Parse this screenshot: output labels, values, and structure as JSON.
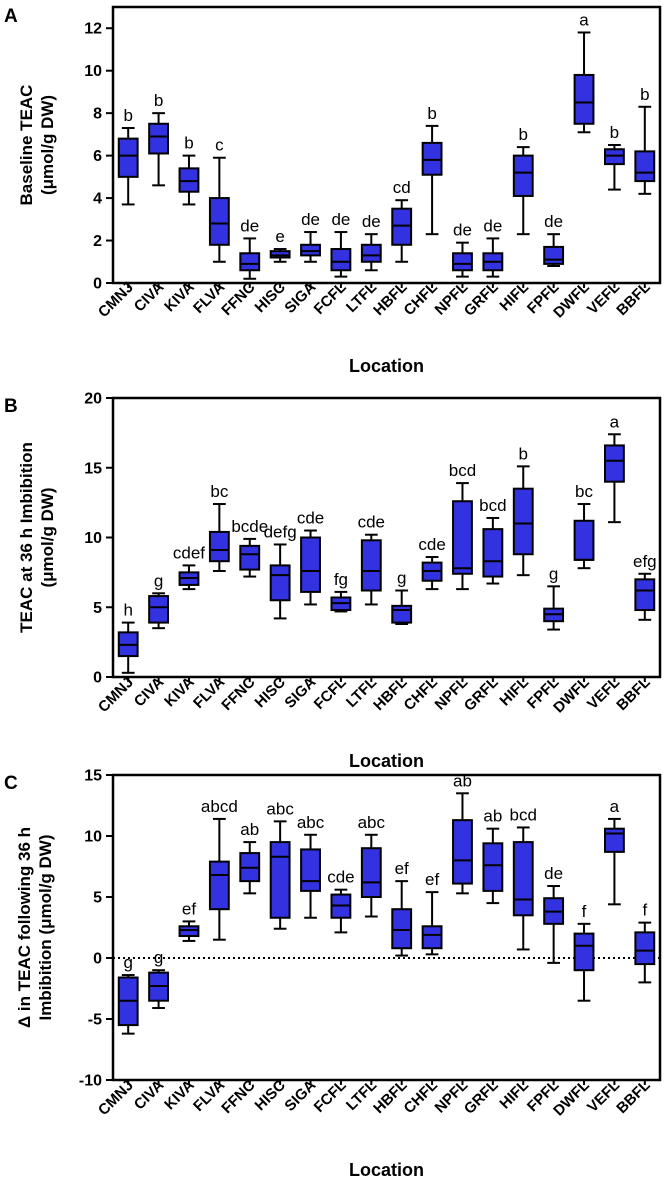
{
  "chart_data": [
    {
      "type": "box",
      "panel": "A",
      "title": "",
      "xlabel": "Location",
      "ylabel": [
        "Baseline TEAC",
        "(μmol/g DW)"
      ],
      "ylim": [
        0,
        13
      ],
      "yticks": [
        0,
        2,
        4,
        6,
        8,
        10,
        12
      ],
      "categories": [
        "CMNJ",
        "CIVA",
        "KIVA",
        "FLVA",
        "FFNC",
        "HISC",
        "SIGA",
        "FCFL",
        "LTFL",
        "HBFL",
        "CHFL",
        "NPFL",
        "GRFL",
        "HIFL",
        "FPFL",
        "DWFL",
        "VEFL",
        "BBFL"
      ],
      "boxes": [
        {
          "min": 3.7,
          "q1": 5.0,
          "median": 6.0,
          "q3": 6.8,
          "max": 7.3
        },
        {
          "min": 4.6,
          "q1": 6.1,
          "median": 6.9,
          "q3": 7.5,
          "max": 8.0
        },
        {
          "min": 3.7,
          "q1": 4.3,
          "median": 4.8,
          "q3": 5.4,
          "max": 6.0
        },
        {
          "min": 1.0,
          "q1": 1.8,
          "median": 2.8,
          "q3": 4.0,
          "max": 5.9
        },
        {
          "min": 0.2,
          "q1": 0.6,
          "median": 0.9,
          "q3": 1.4,
          "max": 2.1
        },
        {
          "min": 1.0,
          "q1": 1.2,
          "median": 1.3,
          "q3": 1.5,
          "max": 1.6
        },
        {
          "min": 1.0,
          "q1": 1.3,
          "median": 1.5,
          "q3": 1.8,
          "max": 2.4
        },
        {
          "min": 0.3,
          "q1": 0.6,
          "median": 1.0,
          "q3": 1.6,
          "max": 2.4
        },
        {
          "min": 0.6,
          "q1": 1.0,
          "median": 1.3,
          "q3": 1.8,
          "max": 2.3
        },
        {
          "min": 1.0,
          "q1": 1.8,
          "median": 2.7,
          "q3": 3.5,
          "max": 3.9
        },
        {
          "min": 2.3,
          "q1": 5.1,
          "median": 5.8,
          "q3": 6.6,
          "max": 7.4
        },
        {
          "min": 0.3,
          "q1": 0.6,
          "median": 0.9,
          "q3": 1.4,
          "max": 1.9
        },
        {
          "min": 0.3,
          "q1": 0.6,
          "median": 1.0,
          "q3": 1.4,
          "max": 2.1
        },
        {
          "min": 2.3,
          "q1": 4.1,
          "median": 5.2,
          "q3": 6.0,
          "max": 6.4
        },
        {
          "min": 0.8,
          "q1": 0.9,
          "median": 1.1,
          "q3": 1.7,
          "max": 2.3
        },
        {
          "min": 7.1,
          "q1": 7.5,
          "median": 8.5,
          "q3": 9.8,
          "max": 11.8
        },
        {
          "min": 4.4,
          "q1": 5.6,
          "median": 6.0,
          "q3": 6.3,
          "max": 6.5
        },
        {
          "min": 4.2,
          "q1": 4.8,
          "median": 5.2,
          "q3": 6.2,
          "max": 8.3
        }
      ],
      "annotations": [
        "b",
        "b",
        "b",
        "c",
        "de",
        "e",
        "de",
        "de",
        "de",
        "cd",
        "b",
        "de",
        "de",
        "b",
        "de",
        "a",
        "b",
        "b"
      ]
    },
    {
      "type": "box",
      "panel": "B",
      "title": "",
      "xlabel": "Location",
      "ylabel": [
        "TEAC at 36 h Imbibition",
        "(μmol/g DW)"
      ],
      "ylim": [
        0,
        20
      ],
      "yticks": [
        0,
        5,
        10,
        15,
        20
      ],
      "categories": [
        "CMNJ",
        "CIVA",
        "KIVA",
        "FLVA",
        "FFNC",
        "HISC",
        "SIGA",
        "FCFL",
        "LTFL",
        "HBFL",
        "CHFL",
        "NPFL",
        "GRFL",
        "HIFL",
        "FPFL",
        "DWFL",
        "VEFL",
        "BBFL"
      ],
      "boxes": [
        {
          "min": 0.3,
          "q1": 1.5,
          "median": 2.3,
          "q3": 3.2,
          "max": 3.9
        },
        {
          "min": 3.5,
          "q1": 3.9,
          "median": 5.0,
          "q3": 5.8,
          "max": 6.0
        },
        {
          "min": 6.3,
          "q1": 6.6,
          "median": 7.1,
          "q3": 7.5,
          "max": 8.0
        },
        {
          "min": 7.6,
          "q1": 8.3,
          "median": 9.1,
          "q3": 10.4,
          "max": 12.4
        },
        {
          "min": 7.2,
          "q1": 7.7,
          "median": 8.8,
          "q3": 9.4,
          "max": 9.9
        },
        {
          "min": 4.2,
          "q1": 5.5,
          "median": 7.3,
          "q3": 8.0,
          "max": 9.5
        },
        {
          "min": 5.2,
          "q1": 6.1,
          "median": 7.6,
          "q3": 10.0,
          "max": 10.5
        },
        {
          "min": 4.7,
          "q1": 4.8,
          "median": 5.3,
          "q3": 5.7,
          "max": 6.1
        },
        {
          "min": 5.2,
          "q1": 6.2,
          "median": 7.6,
          "q3": 9.8,
          "max": 10.2
        },
        {
          "min": 3.8,
          "q1": 3.9,
          "median": 4.8,
          "q3": 5.1,
          "max": 6.2
        },
        {
          "min": 6.3,
          "q1": 6.9,
          "median": 7.6,
          "q3": 8.2,
          "max": 8.6
        },
        {
          "min": 6.3,
          "q1": 7.4,
          "median": 7.8,
          "q3": 12.6,
          "max": 13.9
        },
        {
          "min": 6.7,
          "q1": 7.2,
          "median": 8.3,
          "q3": 10.6,
          "max": 11.4
        },
        {
          "min": 7.3,
          "q1": 8.8,
          "median": 11.0,
          "q3": 13.5,
          "max": 15.1
        },
        {
          "min": 3.4,
          "q1": 4.0,
          "median": 4.5,
          "q3": 4.9,
          "max": 6.5
        },
        {
          "min": 7.8,
          "q1": 8.4,
          "median": 8.4,
          "q3": 11.2,
          "max": 12.4
        },
        {
          "min": 11.1,
          "q1": 14.0,
          "median": 15.5,
          "q3": 16.6,
          "max": 17.4
        },
        {
          "min": 4.1,
          "q1": 4.8,
          "median": 6.2,
          "q3": 7.0,
          "max": 7.4
        }
      ],
      "annotations": [
        "h",
        "g",
        "cdef",
        "bc",
        "bcde",
        "defg",
        "cde",
        "fg",
        "cde",
        "g",
        "cde",
        "bcd",
        "bcd",
        "b",
        "g",
        "bc",
        "a",
        "efg"
      ]
    },
    {
      "type": "box",
      "panel": "C",
      "title": "",
      "xlabel": "Location",
      "ylabel": [
        "Δ in TEAC following 36 h",
        "Imbibition (μmol/g DW)"
      ],
      "ylim": [
        -10,
        15
      ],
      "yticks": [
        -10,
        -5,
        0,
        5,
        10,
        15
      ],
      "reference_line": 0,
      "categories": [
        "CMNJ",
        "CIVA",
        "KIVA",
        "FLVA",
        "FFNC",
        "HISC",
        "SIGA",
        "FCFL",
        "LTFL",
        "HBFL",
        "CHFL",
        "NPFL",
        "GRFL",
        "HIFL",
        "FPFL",
        "DWFL",
        "VEFL",
        "BBFL"
      ],
      "boxes": [
        {
          "min": -6.2,
          "q1": -5.5,
          "median": -3.5,
          "q3": -1.6,
          "max": -1.4
        },
        {
          "min": -4.1,
          "q1": -3.5,
          "median": -2.3,
          "q3": -1.2,
          "max": -1.0
        },
        {
          "min": 1.4,
          "q1": 1.8,
          "median": 2.3,
          "q3": 2.6,
          "max": 3.0
        },
        {
          "min": 1.5,
          "q1": 4.0,
          "median": 6.8,
          "q3": 7.9,
          "max": 11.4
        },
        {
          "min": 5.3,
          "q1": 6.3,
          "median": 7.4,
          "q3": 8.6,
          "max": 9.5
        },
        {
          "min": 2.4,
          "q1": 3.3,
          "median": 8.3,
          "q3": 9.5,
          "max": 11.2
        },
        {
          "min": 3.3,
          "q1": 5.5,
          "median": 6.3,
          "q3": 8.9,
          "max": 10.1
        },
        {
          "min": 2.1,
          "q1": 3.3,
          "median": 4.3,
          "q3": 5.2,
          "max": 5.6
        },
        {
          "min": 3.4,
          "q1": 5.0,
          "median": 6.2,
          "q3": 9.0,
          "max": 10.1
        },
        {
          "min": 0.2,
          "q1": 0.8,
          "median": 2.3,
          "q3": 4.0,
          "max": 6.3
        },
        {
          "min": 0.3,
          "q1": 0.8,
          "median": 1.9,
          "q3": 2.6,
          "max": 5.4
        },
        {
          "min": 5.3,
          "q1": 6.1,
          "median": 8.0,
          "q3": 11.3,
          "max": 13.5
        },
        {
          "min": 4.5,
          "q1": 5.5,
          "median": 7.6,
          "q3": 9.4,
          "max": 10.6
        },
        {
          "min": 0.7,
          "q1": 3.5,
          "median": 4.8,
          "q3": 9.5,
          "max": 10.7
        },
        {
          "min": -0.4,
          "q1": 2.8,
          "median": 3.8,
          "q3": 4.9,
          "max": 5.9
        },
        {
          "min": -3.5,
          "q1": -1.0,
          "median": 1.0,
          "q3": 2.0,
          "max": 2.8
        },
        {
          "min": 4.4,
          "q1": 8.7,
          "median": 10.2,
          "q3": 10.6,
          "max": 11.4
        },
        {
          "min": -2.0,
          "q1": -0.5,
          "median": 0.6,
          "q3": 2.1,
          "max": 2.9
        }
      ],
      "annotations": [
        "g",
        "g",
        "ef",
        "abcd",
        "ab",
        "abc",
        "abc",
        "cde",
        "abc",
        "ef",
        "ef",
        "ab",
        "ab",
        "bcd",
        "de",
        "f",
        "a",
        "f"
      ]
    }
  ],
  "style": {
    "box_fill": "#3232e0",
    "line_color": "#000000"
  }
}
